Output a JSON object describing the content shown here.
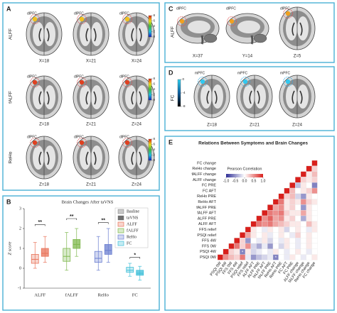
{
  "figure": {
    "panel_a": {
      "label": "A",
      "rows": [
        {
          "name": "ALFF",
          "region": "dlPFC",
          "slices": [
            "X=18",
            "X=21",
            "X=24"
          ]
        },
        {
          "name": "fALFF",
          "region": "dlPFC",
          "slices": [
            "Z=18",
            "Z=21",
            "Z=24"
          ]
        },
        {
          "name": "ReHo",
          "region": "dlPFC",
          "slices": [
            "Z=18",
            "Z=21",
            "Z=24"
          ]
        }
      ],
      "colorbar": {
        "range": [
          0,
          8
        ],
        "ticks": [
          0,
          2,
          4,
          6,
          8
        ],
        "colors": [
          "#1020c0",
          "#20c0e0",
          "#40c040",
          "#f0e020",
          "#e02010"
        ]
      }
    },
    "panel_c": {
      "label": "C",
      "row": "ALFF",
      "region": "dlPFC",
      "slices": [
        "X=37",
        "Y=14",
        "Z=5"
      ]
    },
    "panel_d": {
      "label": "D",
      "row": "FC",
      "region": "mPFC",
      "slices": [
        "Z=18",
        "Z=21",
        "Z=24"
      ],
      "colorbar": {
        "range": [
          -8,
          0
        ],
        "ticks": [
          0,
          -4,
          -8
        ],
        "colors": [
          "#000000",
          "#1060a0",
          "#30d0f0"
        ]
      }
    }
  },
  "chart_data": [
    {
      "type": "box",
      "panel": "B",
      "title": "Brain Changes After taVNS",
      "y_label": "Z score",
      "categories": [
        "ALFF",
        "fALFF",
        "ReHo",
        "FC"
      ],
      "category_colors": [
        "#e8735a",
        "#7fb84e",
        "#6b7fd0",
        "#3fbfd8"
      ],
      "ylim": [
        -1,
        3
      ],
      "yticks": [
        -1,
        0,
        1,
        2,
        3
      ],
      "series": [
        {
          "name": "Basline",
          "color": "#c8c8c8",
          "opacity": 0.3,
          "stats": [
            {
              "min": 0,
              "q1": 0.25,
              "median": 0.45,
              "q3": 0.7,
              "max": 1.3
            },
            {
              "min": -0.1,
              "q1": 0.35,
              "median": 0.6,
              "q3": 1.0,
              "max": 1.8
            },
            {
              "min": -0.1,
              "q1": 0.3,
              "median": 0.5,
              "q3": 0.85,
              "max": 1.6
            },
            {
              "min": -0.4,
              "q1": -0.2,
              "median": -0.1,
              "q3": 0.05,
              "max": 0.25
            }
          ]
        },
        {
          "name": "taVNS",
          "color": "#707070",
          "opacity": 0.75,
          "stats": [
            {
              "min": 0.3,
              "q1": 0.6,
              "median": 0.75,
              "q3": 1.0,
              "max": 1.6
            },
            {
              "min": 0.6,
              "q1": 1.0,
              "median": 1.2,
              "q3": 1.45,
              "max": 2.0
            },
            {
              "min": 0.3,
              "q1": 0.7,
              "median": 0.9,
              "q3": 1.2,
              "max": 2.0
            },
            {
              "min": -0.6,
              "q1": -0.35,
              "median": -0.25,
              "q3": -0.1,
              "max": 0.1
            }
          ]
        }
      ],
      "significance": [
        {
          "category": "ALFF",
          "y": 2.2,
          "label": "**"
        },
        {
          "category": "fALFF",
          "y": 2.5,
          "label": "**"
        },
        {
          "category": "ReHo",
          "y": 2.3,
          "label": "**"
        },
        {
          "category": "FC",
          "y": 0.55,
          "label": "*"
        }
      ]
    },
    {
      "type": "heatmap",
      "panel": "E",
      "title": "Relations Between Symptoms and Brain Changes",
      "colorbar_title": "Pearson Correlation",
      "zlim": [
        -1,
        1
      ],
      "colorbar_ticks": [
        {
          "value": -1,
          "label": "-1.0"
        },
        -0.5,
        {
          "value": 0,
          "label": "0.0"
        },
        0.5,
        {
          "value": 1,
          "label": "1.0"
        }
      ],
      "colors": [
        "#2e2e96",
        "#ffffff",
        "#d8201c"
      ],
      "rows": [
        "FC change",
        "ReHo change",
        "fALFF change",
        "ALFF change",
        "FC PRE",
        "FC AFT",
        "ReHo PRE",
        "ReHo AFT",
        "fALFF PRE",
        "fALFF AFT",
        "ALFF PRE",
        "ALFF AFT",
        "FFS relief",
        "PSQI relief",
        "FFS 4W",
        "FFS 0W",
        "PSQI 4W",
        "PSQI 0W"
      ],
      "columns": [
        "PSQI 0W",
        "PSQI 4W",
        "FFS 0W",
        "FFS 4W",
        "PSQI relief",
        "FFS relief",
        "ALFF AFT",
        "ALFF PRE",
        "fALFF AFT",
        "fALFF PRE",
        "ReHo AFT",
        "ReHo PRE",
        "FC AFT",
        "FC PRE",
        "ALFF change",
        "fALFF change",
        "ReHo change",
        "FC change"
      ],
      "matrix": [
        [
          1
        ],
        [
          1,
          0.2
        ],
        [
          1,
          0.1,
          0.3
        ],
        [
          1,
          0.2,
          0.1,
          0.2
        ],
        [
          1,
          -0.3,
          0.1,
          0.0,
          -0.6
        ],
        [
          1,
          0.3,
          0.0,
          0.1,
          0.2,
          0.5
        ],
        [
          1,
          0.2,
          0.3,
          -0.2,
          -0.5,
          0.1,
          0.0
        ],
        [
          1,
          0.6,
          0.1,
          0.2,
          0.1,
          0.5,
          0.2,
          0.1
        ],
        [
          1,
          0.4,
          0.5,
          0.1,
          0.2,
          0.0,
          -0.5,
          0.1,
          0.0
        ],
        [
          1,
          0.6,
          0.5,
          0.6,
          0.2,
          0.1,
          0.1,
          0.4,
          0.1,
          0.0
        ],
        [
          1,
          0.5,
          0.7,
          0.4,
          0.5,
          0.1,
          0.2,
          0.0,
          -0.4,
          0.1,
          0.0
        ],
        [
          1,
          0.6,
          0.5,
          0.6,
          0.4,
          0.3,
          0.2,
          0.1,
          0.1,
          0.0,
          0.3,
          0.1
        ],
        [
          1,
          0.1,
          0.0,
          -0.1,
          0.1,
          0.0,
          0.1,
          -0.2,
          0.0,
          0.1,
          0.0,
          -0.1,
          0.1
        ],
        [
          1,
          0.4,
          0.1,
          0.0,
          0.1,
          -0.1,
          0.0,
          0.1,
          0.0,
          -0.1,
          0.2,
          0.0,
          0.1,
          0.0
        ],
        [
          1,
          0.2,
          -0.5,
          0.0,
          -0.1,
          0.1,
          -0.2,
          0.0,
          -0.1,
          0.1,
          0.0,
          -0.1,
          0.0,
          0.1,
          0.0
        ],
        [
          1,
          0.6,
          0.2,
          0.5,
          -0.2,
          -0.4,
          -0.1,
          -0.5,
          0.0,
          -0.2,
          0.1,
          0.0,
          -0.1,
          0.0,
          0.1,
          0.0
        ],
        [
          1,
          0.2,
          0.1,
          -0.6,
          0.1,
          -0.2,
          -0.1,
          0.0,
          -0.1,
          0.1,
          0.0,
          -0.1,
          0.0,
          0.1,
          0.0,
          -0.1,
          0.0
        ],
        [
          1,
          0.5,
          0.3,
          0.2,
          0.6,
          -0.1,
          -0.5,
          -0.3,
          -0.2,
          -0.1,
          -0.6,
          0.0,
          -0.1,
          0.1,
          0.0,
          -0.1,
          0.0,
          0.1
        ]
      ],
      "stars": [
        {
          "row": "PSQI 4W",
          "column": "PSQI relief",
          "label": "*"
        },
        {
          "row": "PSQI 0W",
          "column": "ReHo AFT",
          "label": "*"
        }
      ]
    }
  ]
}
